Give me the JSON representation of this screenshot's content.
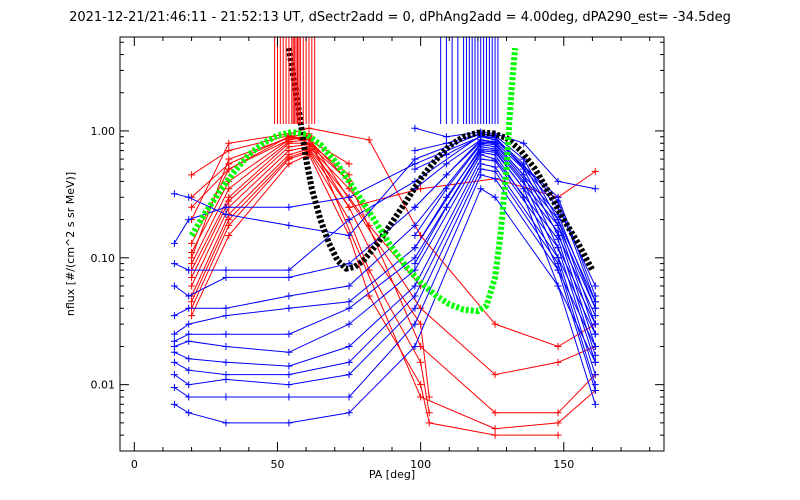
{
  "chart_data": {
    "type": "line",
    "title": "2021-12-21/21:46:11 - 21:52:13 UT, dSectr2add = 0, dPhAng2add = 4.00deg, dPA290_est= -34.5deg",
    "xlabel": "PA [deg]",
    "ylabel": "nflux [#/(cm^2 s sr MeV)]",
    "xlim": [
      -5,
      185
    ],
    "ylim": [
      0.003,
      5.5
    ],
    "yscale": "log",
    "grid": false,
    "x_ticks": [
      0,
      50,
      100,
      150
    ],
    "x_tick_labels": [
      "0",
      "50",
      "100",
      "150"
    ],
    "y_ticks": [
      0.01,
      0.1,
      1.0
    ],
    "y_tick_labels": [
      "0.01",
      "0.10",
      "1.00"
    ],
    "colors": {
      "red": "#ff0000",
      "blue": "#0000ff",
      "green": "#00ff00",
      "black": "#000000"
    },
    "series": [
      {
        "color": "red",
        "kind": "curve",
        "x": [
          20,
          33,
          54,
          61
        ],
        "y": [
          0.13,
          0.5,
          0.9,
          0.95
        ]
      },
      {
        "color": "red",
        "kind": "curve",
        "x": [
          20,
          33,
          54,
          61
        ],
        "y": [
          0.11,
          0.4,
          0.85,
          0.9
        ]
      },
      {
        "color": "red",
        "kind": "curve",
        "x": [
          20,
          33,
          54,
          61,
          75
        ],
        "y": [
          0.09,
          0.35,
          0.82,
          0.85,
          0.55
        ]
      },
      {
        "color": "red",
        "kind": "curve",
        "x": [
          20,
          33,
          54,
          61,
          75
        ],
        "y": [
          0.08,
          0.3,
          0.8,
          0.8,
          0.45
        ]
      },
      {
        "color": "red",
        "kind": "curve",
        "x": [
          20,
          33,
          54,
          61,
          75
        ],
        "y": [
          0.07,
          0.28,
          0.75,
          0.78,
          0.4
        ]
      },
      {
        "color": "red",
        "kind": "curve",
        "x": [
          20,
          33,
          54,
          61,
          75,
          82
        ],
        "y": [
          0.06,
          0.25,
          0.7,
          0.75,
          0.35,
          0.22
        ]
      },
      {
        "color": "red",
        "kind": "curve",
        "x": [
          20,
          33,
          54,
          61,
          75,
          82,
          100
        ],
        "y": [
          0.05,
          0.22,
          0.65,
          0.72,
          0.3,
          0.18,
          0.06
        ]
      },
      {
        "color": "red",
        "kind": "curve",
        "x": [
          20,
          33,
          54,
          61,
          75,
          82,
          100,
          103
        ],
        "y": [
          0.045,
          0.2,
          0.62,
          0.7,
          0.25,
          0.12,
          0.03,
          0.008
        ]
      },
      {
        "color": "red",
        "kind": "curve",
        "x": [
          20,
          33,
          54,
          61,
          75,
          82,
          100,
          103
        ],
        "y": [
          0.04,
          0.18,
          0.6,
          0.68,
          0.2,
          0.08,
          0.015,
          0.006
        ]
      },
      {
        "color": "red",
        "kind": "curve",
        "x": [
          20,
          33,
          54,
          61,
          75,
          82,
          100,
          103,
          126,
          148
        ],
        "y": [
          0.035,
          0.15,
          0.55,
          0.65,
          0.15,
          0.05,
          0.01,
          0.005,
          0.004,
          0.004
        ]
      },
      {
        "color": "red",
        "kind": "curve",
        "x": [
          20,
          33,
          54,
          61,
          75,
          100,
          126,
          148,
          161
        ],
        "y": [
          0.1,
          0.6,
          0.88,
          0.85,
          0.4,
          0.02,
          0.006,
          0.006,
          0.012
        ]
      },
      {
        "color": "red",
        "kind": "curve",
        "x": [
          20,
          33,
          54,
          61,
          82,
          100,
          126,
          148,
          161
        ],
        "y": [
          0.2,
          0.8,
          0.95,
          1.05,
          0.85,
          0.15,
          0.03,
          0.02,
          0.03
        ]
      },
      {
        "color": "red",
        "kind": "curve",
        "x": [
          20,
          33,
          54,
          61,
          75,
          100,
          126,
          148,
          161
        ],
        "y": [
          0.45,
          0.7,
          0.92,
          0.8,
          0.25,
          0.35,
          0.42,
          0.3,
          0.48
        ]
      },
      {
        "color": "red",
        "kind": "curve",
        "x": [
          20,
          33,
          54,
          61,
          100,
          126,
          148,
          161
        ],
        "y": [
          0.3,
          0.55,
          0.9,
          0.88,
          0.04,
          0.012,
          0.015,
          0.02
        ]
      },
      {
        "color": "red",
        "kind": "curve",
        "x": [
          20,
          33,
          54,
          61,
          100,
          126,
          148,
          161
        ],
        "y": [
          0.25,
          0.5,
          0.85,
          0.92,
          0.008,
          0.0045,
          0.005,
          0.009
        ]
      },
      {
        "color": "blue",
        "kind": "curve",
        "x": [
          14,
          19,
          32,
          54,
          75,
          98,
          121,
          126,
          148,
          161
        ],
        "y": [
          0.32,
          0.3,
          0.22,
          0.18,
          0.15,
          0.6,
          0.95,
          0.9,
          0.25,
          0.06
        ]
      },
      {
        "color": "blue",
        "kind": "curve",
        "x": [
          14,
          19,
          32,
          54,
          75,
          98,
          121,
          126,
          148,
          161
        ],
        "y": [
          0.13,
          0.2,
          0.25,
          0.25,
          0.3,
          0.55,
          0.9,
          0.85,
          0.3,
          0.05
        ]
      },
      {
        "color": "blue",
        "kind": "curve",
        "x": [
          14,
          19,
          32,
          54,
          75,
          98,
          121,
          126,
          148,
          161
        ],
        "y": [
          0.09,
          0.08,
          0.08,
          0.08,
          0.2,
          0.4,
          0.92,
          0.88,
          0.28,
          0.045
        ]
      },
      {
        "color": "blue",
        "kind": "curve",
        "x": [
          14,
          19,
          32,
          54,
          75,
          98,
          121,
          126,
          148,
          161
        ],
        "y": [
          0.06,
          0.05,
          0.07,
          0.07,
          0.09,
          0.25,
          0.85,
          0.8,
          0.22,
          0.04
        ]
      },
      {
        "color": "blue",
        "kind": "curve",
        "x": [
          14,
          19,
          32,
          54,
          75,
          98,
          121,
          126,
          148,
          161
        ],
        "y": [
          0.035,
          0.04,
          0.04,
          0.05,
          0.06,
          0.18,
          0.8,
          0.78,
          0.2,
          0.03
        ]
      },
      {
        "color": "blue",
        "kind": "curve",
        "x": [
          14,
          19,
          32,
          54,
          75,
          98,
          121,
          126,
          148,
          161
        ],
        "y": [
          0.025,
          0.03,
          0.035,
          0.04,
          0.045,
          0.12,
          0.75,
          0.72,
          0.18,
          0.025
        ]
      },
      {
        "color": "blue",
        "kind": "curve",
        "x": [
          14,
          19,
          32,
          54,
          75,
          98,
          121,
          126,
          148,
          161
        ],
        "y": [
          0.022,
          0.025,
          0.025,
          0.025,
          0.04,
          0.1,
          0.7,
          0.68,
          0.16,
          0.02
        ]
      },
      {
        "color": "blue",
        "kind": "curve",
        "x": [
          14,
          19,
          32,
          54,
          75,
          98,
          121,
          126,
          148,
          161
        ],
        "y": [
          0.02,
          0.022,
          0.02,
          0.018,
          0.03,
          0.08,
          0.65,
          0.6,
          0.14,
          0.017
        ]
      },
      {
        "color": "blue",
        "kind": "curve",
        "x": [
          14,
          19,
          32,
          54,
          75,
          98,
          121,
          126,
          148,
          161
        ],
        "y": [
          0.018,
          0.016,
          0.015,
          0.014,
          0.02,
          0.06,
          0.6,
          0.58,
          0.12,
          0.015
        ]
      },
      {
        "color": "blue",
        "kind": "curve",
        "x": [
          14,
          19,
          32,
          54,
          75,
          98,
          121,
          126,
          148,
          161
        ],
        "y": [
          0.015,
          0.013,
          0.012,
          0.012,
          0.015,
          0.05,
          0.55,
          0.52,
          0.1,
          0.012
        ]
      },
      {
        "color": "blue",
        "kind": "curve",
        "x": [
          14,
          19,
          32,
          54,
          75,
          98,
          121,
          126,
          148,
          161
        ],
        "y": [
          0.012,
          0.01,
          0.011,
          0.01,
          0.012,
          0.04,
          0.5,
          0.48,
          0.09,
          0.01
        ]
      },
      {
        "color": "blue",
        "kind": "curve",
        "x": [
          14,
          19,
          32,
          54,
          75,
          98,
          121,
          126,
          148,
          161
        ],
        "y": [
          0.0095,
          0.008,
          0.008,
          0.008,
          0.008,
          0.03,
          0.45,
          0.42,
          0.08,
          0.009
        ]
      },
      {
        "color": "blue",
        "kind": "curve",
        "x": [
          14,
          19,
          32,
          54,
          75,
          98,
          121,
          126,
          148,
          161
        ],
        "y": [
          0.007,
          0.006,
          0.005,
          0.005,
          0.006,
          0.02,
          0.35,
          0.3,
          0.06,
          0.007
        ]
      },
      {
        "color": "blue",
        "kind": "curve",
        "x": [
          98,
          109,
          121,
          126,
          136,
          148,
          161
        ],
        "y": [
          1.05,
          0.9,
          0.98,
          0.95,
          0.8,
          0.4,
          0.35
        ]
      },
      {
        "color": "blue",
        "kind": "curve",
        "x": [
          98,
          109,
          121,
          126,
          136,
          148,
          161
        ],
        "y": [
          0.7,
          0.8,
          0.95,
          0.92,
          0.6,
          0.2,
          0.045
        ]
      },
      {
        "color": "blue",
        "kind": "curve",
        "x": [
          98,
          109,
          121,
          126,
          136,
          148,
          161
        ],
        "y": [
          0.5,
          0.65,
          0.9,
          0.88,
          0.55,
          0.18,
          0.04
        ]
      },
      {
        "color": "blue",
        "kind": "curve",
        "x": [
          98,
          109,
          121,
          126,
          136,
          148,
          161
        ],
        "y": [
          0.35,
          0.55,
          0.85,
          0.82,
          0.5,
          0.15,
          0.035
        ]
      },
      {
        "color": "blue",
        "kind": "curve",
        "x": [
          98,
          109,
          121,
          126,
          136,
          148,
          161
        ],
        "y": [
          0.25,
          0.45,
          0.82,
          0.8,
          0.45,
          0.12,
          0.03
        ]
      },
      {
        "color": "blue",
        "kind": "curve",
        "x": [
          98,
          109,
          121,
          126,
          136,
          148,
          161
        ],
        "y": [
          0.15,
          0.35,
          0.78,
          0.75,
          0.4,
          0.1,
          0.025
        ]
      },
      {
        "color": "blue",
        "kind": "curve",
        "x": [
          98,
          109,
          121,
          126,
          136,
          148,
          161
        ],
        "y": [
          0.12,
          0.3,
          0.72,
          0.7,
          0.35,
          0.08,
          0.02
        ]
      },
      {
        "color": "blue",
        "kind": "curve",
        "x": [
          98,
          109,
          121,
          126,
          136,
          148,
          161
        ],
        "y": [
          0.09,
          0.25,
          0.68,
          0.65,
          0.3,
          0.06,
          0.015
        ]
      },
      {
        "color": "black",
        "kind": "model",
        "x": [
          54,
          56,
          58,
          60,
          62,
          65,
          68,
          71,
          74,
          77,
          80,
          85,
          90,
          95,
          100,
          105,
          110,
          115,
          120,
          125,
          130,
          135,
          140,
          145,
          150,
          155,
          160
        ],
        "y": [
          4.5,
          2.3,
          1.2,
          0.6,
          0.35,
          0.2,
          0.13,
          0.095,
          0.082,
          0.085,
          0.095,
          0.13,
          0.19,
          0.28,
          0.42,
          0.58,
          0.76,
          0.9,
          0.97,
          0.96,
          0.88,
          0.7,
          0.5,
          0.32,
          0.2,
          0.13,
          0.08
        ]
      },
      {
        "color": "green",
        "kind": "model",
        "x": [
          20,
          25,
          30,
          35,
          40,
          45,
          50,
          55,
          60,
          65,
          70,
          75,
          80,
          85,
          90,
          95,
          100,
          105,
          110,
          115,
          120,
          123,
          126,
          128,
          130,
          131,
          132,
          133
        ],
        "y": [
          0.15,
          0.23,
          0.34,
          0.48,
          0.65,
          0.8,
          0.92,
          0.98,
          0.94,
          0.78,
          0.58,
          0.4,
          0.27,
          0.18,
          0.12,
          0.085,
          0.064,
          0.051,
          0.043,
          0.039,
          0.038,
          0.042,
          0.07,
          0.16,
          0.5,
          1.2,
          2.5,
          4.5
        ]
      },
      {
        "color": "red",
        "kind": "stems",
        "x": [
          49,
          50,
          51,
          52,
          53,
          54,
          55,
          55.5,
          56,
          56.5,
          57,
          57.5,
          58,
          59,
          60,
          61,
          62,
          63
        ]
      },
      {
        "color": "blue",
        "kind": "stems",
        "x": [
          107,
          109,
          111,
          113,
          115,
          116,
          117,
          118,
          119,
          120,
          121,
          122,
          123,
          124,
          125,
          126,
          127
        ]
      }
    ]
  }
}
